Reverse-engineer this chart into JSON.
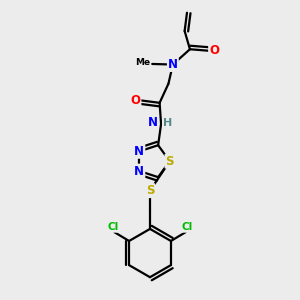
{
  "background_color": "#ececec",
  "atom_colors": {
    "C": "#000000",
    "N": "#0000ff",
    "O": "#ff0000",
    "S": "#bbaa00",
    "Cl": "#00bb00",
    "H": "#558888"
  },
  "bond_color": "#000000",
  "bond_width": 1.6
}
